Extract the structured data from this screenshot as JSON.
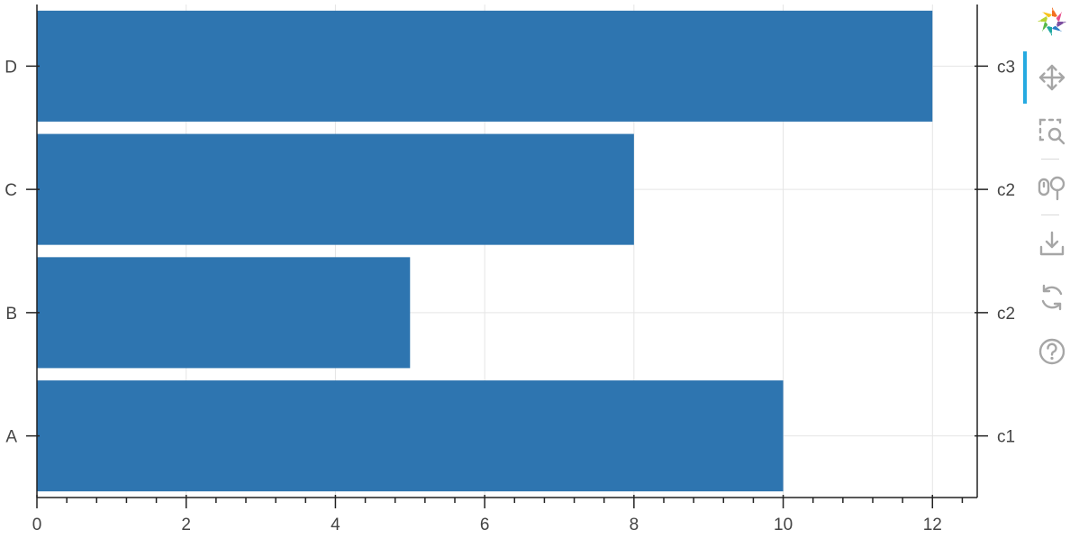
{
  "chart_data": {
    "type": "bar",
    "orientation": "horizontal",
    "categories": [
      "A",
      "B",
      "C",
      "D"
    ],
    "values": [
      10,
      5,
      8,
      12
    ],
    "right_axis_labels": [
      "c1",
      "c2",
      "c2",
      "c3"
    ],
    "xlim": [
      0,
      12.6
    ],
    "x_ticks": [
      0,
      2,
      4,
      6,
      8,
      10,
      12
    ],
    "x_tick_labels": [
      "0",
      "2",
      "4",
      "6",
      "8",
      "10",
      "12"
    ],
    "bar_color": "#2e75b0",
    "grid": true,
    "legend": "none"
  },
  "toolbar": {
    "logo_icon": "bokeh-logo-icon",
    "tools": [
      {
        "id": "pan",
        "icon": "pan-icon",
        "active": true
      },
      {
        "id": "box-zoom",
        "icon": "box-zoom-icon",
        "active": false
      },
      {
        "id": "wheel-zoom",
        "icon": "wheel-zoom-icon",
        "active": false
      },
      {
        "id": "save",
        "icon": "save-icon",
        "active": false
      },
      {
        "id": "reset",
        "icon": "reset-icon",
        "active": false
      },
      {
        "id": "help",
        "icon": "help-icon",
        "active": false
      }
    ],
    "active_color": "#26aae1",
    "icon_color": "#a6a6a6"
  }
}
